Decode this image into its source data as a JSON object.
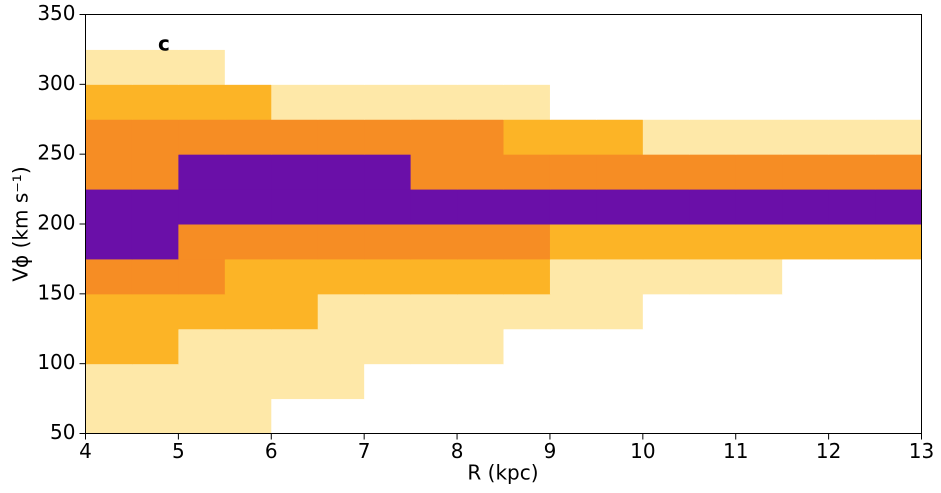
{
  "chart_data": {
    "type": "heatmap",
    "panel_label": "c",
    "x_label": "R (kpc)",
    "y_label": "Vϕ (km s⁻¹)",
    "xlim": [
      4,
      13
    ],
    "xticks": [
      4,
      5,
      6,
      7,
      8,
      9,
      10,
      11,
      12,
      13
    ],
    "ylim": [
      50,
      350
    ],
    "yticks": [
      50,
      100,
      150,
      200,
      250,
      300,
      350
    ],
    "xbins": [
      4,
      4.5,
      5,
      5.5,
      6,
      6.5,
      7,
      7.5,
      8,
      8.5,
      9,
      9.5,
      10,
      10.5,
      11,
      11.5,
      12,
      12.5,
      13
    ],
    "ybins": [
      50,
      75,
      100,
      125,
      150,
      175,
      200,
      225,
      250,
      275,
      300,
      325,
      350
    ],
    "level_colors": [
      "#ffffff",
      "#fee8a8",
      "#fcb426",
      "#f68d24",
      "#6a0fa8"
    ],
    "z": [
      [
        1,
        1,
        1,
        1,
        0,
        0,
        0,
        0,
        0,
        0,
        0,
        0,
        0,
        0,
        0,
        0,
        0,
        0
      ],
      [
        1,
        1,
        1,
        1,
        1,
        1,
        0,
        0,
        0,
        0,
        0,
        0,
        0,
        0,
        0,
        0,
        0,
        0
      ],
      [
        2,
        2,
        1,
        1,
        1,
        1,
        1,
        1,
        1,
        0,
        0,
        0,
        0,
        0,
        0,
        0,
        0,
        0
      ],
      [
        2,
        2,
        2,
        2,
        2,
        1,
        1,
        1,
        1,
        1,
        1,
        1,
        0,
        0,
        0,
        0,
        0,
        0
      ],
      [
        3,
        3,
        3,
        2,
        2,
        2,
        2,
        2,
        2,
        2,
        1,
        1,
        1,
        1,
        1,
        0,
        0,
        0
      ],
      [
        4,
        4,
        3,
        3,
        3,
        3,
        3,
        3,
        3,
        3,
        2,
        2,
        2,
        2,
        2,
        2,
        2,
        2
      ],
      [
        4,
        4,
        4,
        4,
        4,
        4,
        4,
        4,
        4,
        4,
        4,
        4,
        4,
        4,
        4,
        4,
        4,
        4
      ],
      [
        3,
        3,
        4,
        4,
        4,
        4,
        4,
        3,
        3,
        3,
        3,
        3,
        3,
        3,
        3,
        3,
        3,
        3
      ],
      [
        3,
        3,
        3,
        3,
        3,
        3,
        3,
        3,
        3,
        2,
        2,
        2,
        1,
        1,
        1,
        1,
        1,
        1
      ],
      [
        2,
        2,
        2,
        2,
        1,
        1,
        1,
        1,
        1,
        1,
        0,
        0,
        0,
        0,
        0,
        0,
        0,
        0
      ],
      [
        1,
        1,
        1,
        0,
        0,
        0,
        0,
        0,
        0,
        0,
        0,
        0,
        0,
        0,
        0,
        0,
        0,
        0
      ],
      [
        0,
        0,
        0,
        0,
        0,
        0,
        0,
        0,
        0,
        0,
        0,
        0,
        0,
        0,
        0,
        0,
        0,
        0
      ]
    ]
  }
}
